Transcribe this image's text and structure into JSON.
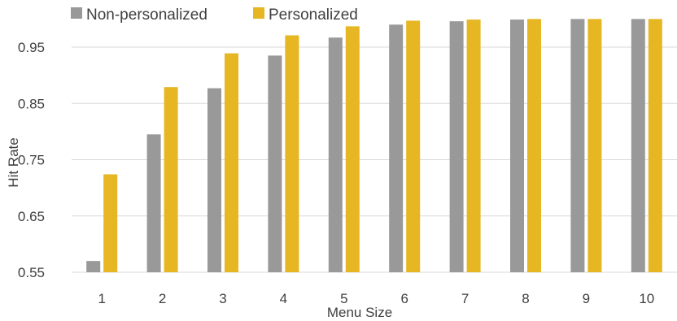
{
  "chart_data": {
    "type": "bar",
    "title": "",
    "xlabel": "Menu Size",
    "ylabel": "Hit Rate",
    "ylim": [
      0.55,
      1.0
    ],
    "yticks": [
      "0.55",
      "0.65",
      "0.75",
      "0.85",
      "0.95"
    ],
    "categories": [
      "1",
      "2",
      "3",
      "4",
      "5",
      "6",
      "7",
      "8",
      "9",
      "10"
    ],
    "series": [
      {
        "name": "Non-personalized",
        "color": "#999999",
        "values": [
          0.57,
          0.795,
          0.877,
          0.935,
          0.967,
          0.99,
          0.996,
          0.999,
          1.0,
          1.0
        ]
      },
      {
        "name": "Personalized",
        "color": "#e6b623",
        "values": [
          0.724,
          0.879,
          0.939,
          0.971,
          0.987,
          0.997,
          0.999,
          1.0,
          1.0,
          1.0
        ]
      }
    ],
    "grid": true,
    "legend": "top-left"
  }
}
